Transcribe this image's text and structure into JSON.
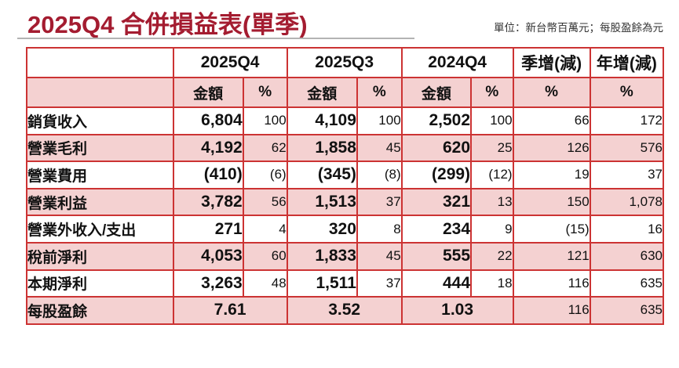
{
  "title": "2025Q4 合併損益表(單季)",
  "unit_note": "單位：新台幣百萬元；每股盈餘為元",
  "colors": {
    "title_red": "#a41c30",
    "table_border_red": "#cc3333",
    "row_pink": "#f4d1d1",
    "negative_red": "#ea0000"
  },
  "chart_data": {
    "type": "table",
    "title": "2025Q4 合併損益表(單季)",
    "unit": "新台幣百萬元；每股盈餘為元",
    "quarter_headers": [
      "2025Q4",
      "2025Q3",
      "2024Q4"
    ],
    "change_headers": [
      "季增(減)",
      "年增(減)"
    ],
    "sub_headers": {
      "amount": "金額",
      "percent": "%"
    },
    "rows": [
      {
        "label": "銷貨收入",
        "values": [
          "6,804",
          "100",
          "4,109",
          "100",
          "2,502",
          "100",
          "66",
          "172"
        ]
      },
      {
        "label": "營業毛利",
        "values": [
          "4,192",
          "62",
          "1,858",
          "45",
          "620",
          "25",
          "126",
          "576"
        ]
      },
      {
        "label": "營業費用",
        "values": [
          "(410)",
          "(6)",
          "(345)",
          "(8)",
          "(299)",
          "(12)",
          "19",
          "37"
        ]
      },
      {
        "label": "營業利益",
        "values": [
          "3,782",
          "56",
          "1,513",
          "37",
          "321",
          "13",
          "150",
          "1,078"
        ]
      },
      {
        "label": "營業外收入/支出",
        "values": [
          "271",
          "4",
          "320",
          "8",
          "234",
          "9",
          "(15)",
          "16"
        ]
      },
      {
        "label": "稅前淨利",
        "values": [
          "4,053",
          "60",
          "1,833",
          "45",
          "555",
          "22",
          "121",
          "630"
        ]
      },
      {
        "label": "本期淨利",
        "values": [
          "3,263",
          "48",
          "1,511",
          "37",
          "444",
          "18",
          "116",
          "635"
        ]
      },
      {
        "label": "每股盈餘",
        "merged": true,
        "values": [
          "7.61",
          "3.52",
          "1.03",
          "116",
          "635"
        ]
      }
    ]
  }
}
